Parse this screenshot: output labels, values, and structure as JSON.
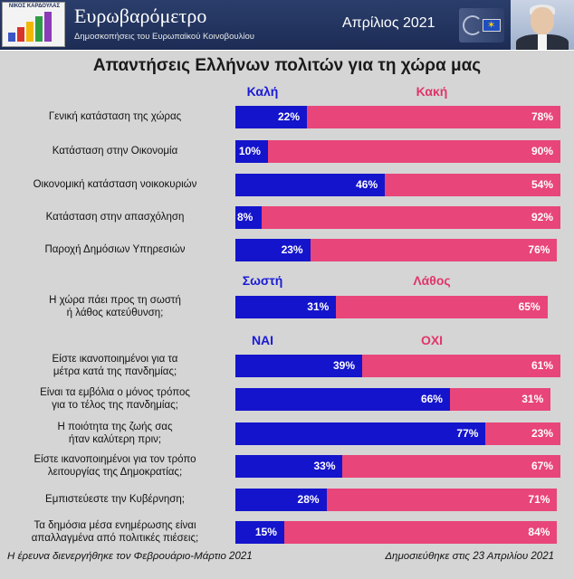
{
  "header": {
    "logo_name": "ΝΙΚΟΣ ΚΑΡΔΟΥΛΑΣ",
    "brand_title": "Ευρωβαρόμετρο",
    "brand_subtitle": "Δημοσκοπήσεις του Ευρωπαϊκού Κοινοβουλίου",
    "date": "Απρίλιος 2021",
    "ep_logo_icon": "european-parliament-logo",
    "avatar_icon": "person-photo"
  },
  "colors": {
    "positive": "#1414cc",
    "negative": "#e8457a",
    "header_bg": "#1c2c55",
    "panel_bg": "#d5d5d5"
  },
  "chart_data": {
    "type": "bar",
    "title": "Απαντήσεις Ελλήνων πολιτών για τη χώρα μας",
    "groups": [
      {
        "pos_label": "Καλή",
        "neg_label": "Κακή",
        "rows": [
          0,
          1,
          2,
          3,
          4
        ]
      },
      {
        "pos_label": "Σωστή",
        "neg_label": "Λάθος",
        "rows": [
          5
        ]
      },
      {
        "pos_label": "ΝΑΙ",
        "neg_label": "ΟΧΙ",
        "rows": [
          6,
          7,
          8,
          9,
          10,
          11
        ]
      }
    ],
    "rows": [
      {
        "label": [
          "Γενική κατάσταση της χώρας"
        ],
        "pos": 22,
        "neg": 78
      },
      {
        "label": [
          "Κατάσταση στην Οικονομία"
        ],
        "pos": 10,
        "neg": 90
      },
      {
        "label": [
          "Οικονομική κατάσταση νοικοκυριών"
        ],
        "pos": 46,
        "neg": 54
      },
      {
        "label": [
          "Κατάσταση στην απασχόληση"
        ],
        "pos": 8,
        "neg": 92
      },
      {
        "label": [
          "Παροχή Δημόσιων Υπηρεσιών"
        ],
        "pos": 23,
        "neg": 76
      },
      {
        "label": [
          "Η χώρα πάει προς τη σωστή",
          "ή λάθος κατεύθυνση;"
        ],
        "pos": 31,
        "neg": 65
      },
      {
        "label": [
          "Είστε ικανοποιημένοι για τα",
          "μέτρα κατά της πανδημίας;"
        ],
        "pos": 39,
        "neg": 61
      },
      {
        "label": [
          "Είναι τα εμβόλια ο μόνος τρόπος",
          "για το τέλος της πανδημίας;"
        ],
        "pos": 66,
        "neg": 31
      },
      {
        "label": [
          "Η ποιότητα της ζωής σας",
          "ήταν καλύτερη πριν;"
        ],
        "pos": 77,
        "neg": 23
      },
      {
        "label": [
          "Είστε ικανοποιημένοι για τον τρόπο",
          "λειτουργίας της Δημοκρατίας;"
        ],
        "pos": 33,
        "neg": 67
      },
      {
        "label": [
          "Εμπιστεύεστε την Κυβέρνηση;"
        ],
        "pos": 28,
        "neg": 71
      },
      {
        "label": [
          "Τα δημόσια μέσα ενημέρωσης είναι",
          "απαλλαγμένα από πολιτικές πιέσεις;"
        ],
        "pos": 15,
        "neg": 84
      }
    ],
    "value_suffix": "%",
    "xlim": [
      0,
      100
    ]
  },
  "footer": {
    "left": "Η έρευνα διενεργήθηκε τον Φεβρουάριο-Μάρτιο 2021",
    "right": "Δημοσιεύθηκε στις 23 Απριλίου 2021"
  }
}
